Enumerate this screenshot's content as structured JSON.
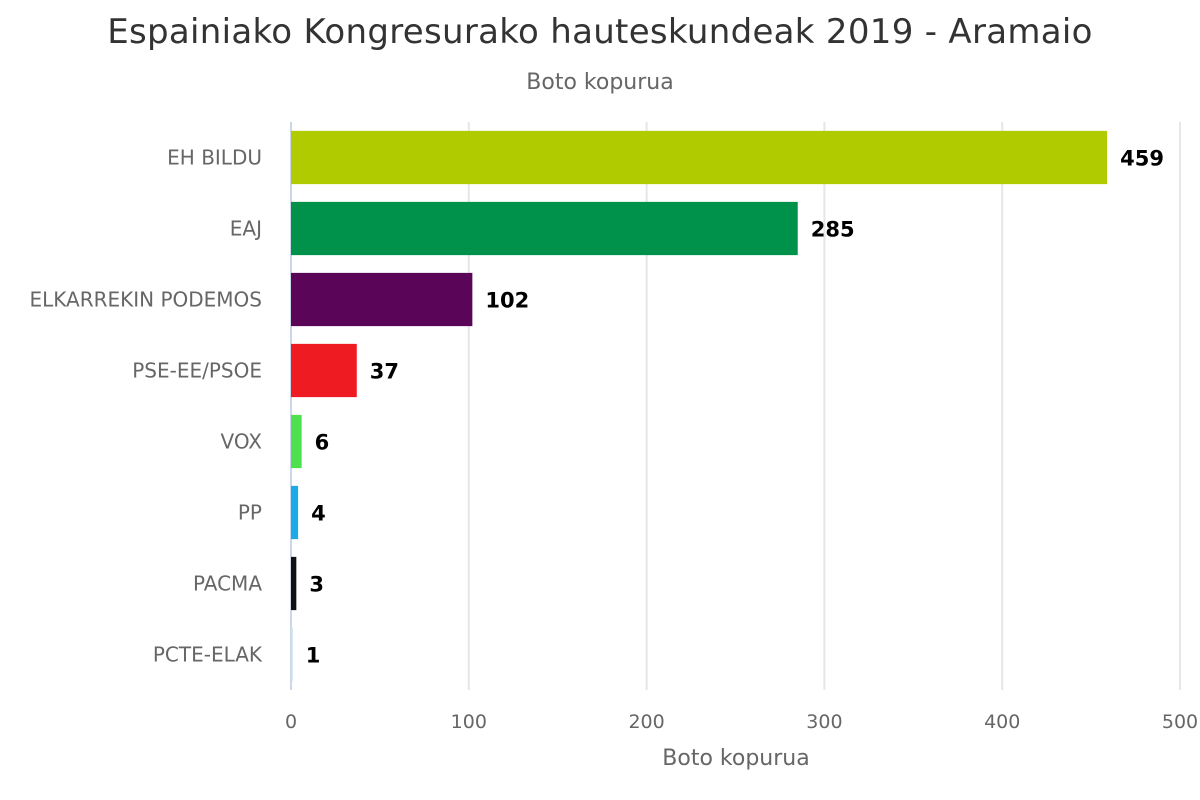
{
  "chart_data": {
    "type": "bar",
    "orientation": "horizontal",
    "title": "Espainiako Kongresurako hauteskundeak 2019 - Aramaio",
    "subtitle": "Boto kopurua",
    "xlabel": "Boto kopurua",
    "ylabel": "",
    "categories": [
      "EH BILDU",
      "EAJ",
      "ELKARREKIN PODEMOS",
      "PSE-EE/PSOE",
      "VOX",
      "PP",
      "PACMA",
      "PCTE-ELAK"
    ],
    "values": [
      459,
      285,
      102,
      37,
      6,
      4,
      3,
      1
    ],
    "colors": [
      "#b0cb00",
      "#00924a",
      "#5a0558",
      "#ee1c22",
      "#4de24d",
      "#1ba9e8",
      "#111111",
      "#c9e3e9"
    ],
    "xlim": [
      0,
      500
    ],
    "ticks": [
      0,
      100,
      200,
      300,
      400,
      500
    ],
    "grid": true,
    "legend": false,
    "data_labels": true
  }
}
